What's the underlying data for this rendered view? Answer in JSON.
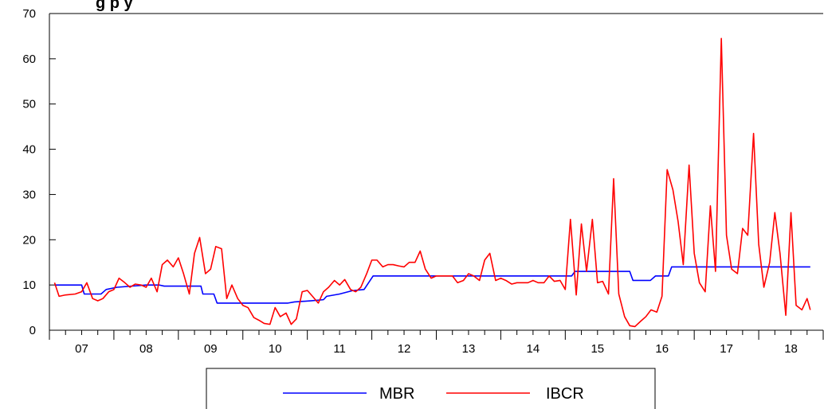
{
  "chart_data": {
    "type": "line",
    "title_fragment": "g              p    y",
    "ylim": [
      0,
      70
    ],
    "yticks": [
      "0",
      "10",
      "20",
      "30",
      "40",
      "50",
      "60",
      "70"
    ],
    "xlim": [
      2006.5,
      2018.5
    ],
    "xtick_labels": [
      "07",
      "08",
      "09",
      "10",
      "11",
      "12",
      "13",
      "14",
      "15",
      "16",
      "17",
      "18"
    ],
    "grid": false,
    "legend_position": "bottom",
    "series": [
      {
        "name": "MBR",
        "color": "#0000ff",
        "points": [
          [
            2006.58,
            10.0
          ],
          [
            2007.0,
            10.0
          ],
          [
            2007.04,
            8.0
          ],
          [
            2007.3,
            8.0
          ],
          [
            2007.38,
            9.0
          ],
          [
            2007.55,
            9.5
          ],
          [
            2008.0,
            10.0
          ],
          [
            2008.2,
            10.0
          ],
          [
            2008.28,
            9.75
          ],
          [
            2008.85,
            9.75
          ],
          [
            2008.88,
            8.0
          ],
          [
            2009.05,
            8.0
          ],
          [
            2009.1,
            6.0
          ],
          [
            2010.2,
            6.0
          ],
          [
            2010.3,
            6.25
          ],
          [
            2010.55,
            6.5
          ],
          [
            2010.75,
            6.75
          ],
          [
            2010.8,
            7.5
          ],
          [
            2011.0,
            8.0
          ],
          [
            2011.2,
            8.75
          ],
          [
            2011.38,
            9.0
          ],
          [
            2011.52,
            12.0
          ],
          [
            2014.6,
            12.0
          ],
          [
            2014.65,
            13.0
          ],
          [
            2015.5,
            13.0
          ],
          [
            2015.55,
            11.0
          ],
          [
            2015.82,
            11.0
          ],
          [
            2015.9,
            12.0
          ],
          [
            2016.1,
            12.0
          ],
          [
            2016.15,
            14.0
          ],
          [
            2018.3,
            14.0
          ]
        ]
      },
      {
        "name": "IBCR",
        "color": "#ff0000",
        "points": [
          [
            2006.58,
            10.5
          ],
          [
            2006.65,
            7.5
          ],
          [
            2006.75,
            7.8
          ],
          [
            2006.9,
            8.0
          ],
          [
            2007.0,
            8.5
          ],
          [
            2007.08,
            10.5
          ],
          [
            2007.17,
            7.0
          ],
          [
            2007.25,
            6.5
          ],
          [
            2007.33,
            7.0
          ],
          [
            2007.42,
            8.5
          ],
          [
            2007.5,
            9.0
          ],
          [
            2007.58,
            11.5
          ],
          [
            2007.67,
            10.5
          ],
          [
            2007.75,
            9.5
          ],
          [
            2007.83,
            10.2
          ],
          [
            2007.92,
            10.0
          ],
          [
            2008.0,
            9.5
          ],
          [
            2008.08,
            11.5
          ],
          [
            2008.17,
            8.5
          ],
          [
            2008.25,
            14.5
          ],
          [
            2008.33,
            15.5
          ],
          [
            2008.42,
            14.0
          ],
          [
            2008.5,
            16.0
          ],
          [
            2008.58,
            12.5
          ],
          [
            2008.67,
            8.0
          ],
          [
            2008.75,
            17.0
          ],
          [
            2008.83,
            20.5
          ],
          [
            2008.92,
            12.5
          ],
          [
            2009.0,
            13.5
          ],
          [
            2009.08,
            18.5
          ],
          [
            2009.17,
            18.0
          ],
          [
            2009.25,
            7.0
          ],
          [
            2009.33,
            10.0
          ],
          [
            2009.42,
            7.0
          ],
          [
            2009.5,
            5.5
          ],
          [
            2009.58,
            5.0
          ],
          [
            2009.67,
            2.8
          ],
          [
            2009.75,
            2.2
          ],
          [
            2009.83,
            1.5
          ],
          [
            2009.92,
            1.3
          ],
          [
            2010.0,
            5.0
          ],
          [
            2010.08,
            3.0
          ],
          [
            2010.17,
            3.8
          ],
          [
            2010.25,
            1.3
          ],
          [
            2010.33,
            2.5
          ],
          [
            2010.42,
            8.5
          ],
          [
            2010.5,
            8.8
          ],
          [
            2010.58,
            7.5
          ],
          [
            2010.67,
            6.0
          ],
          [
            2010.75,
            8.5
          ],
          [
            2010.83,
            9.5
          ],
          [
            2010.92,
            11.0
          ],
          [
            2011.0,
            10.0
          ],
          [
            2011.08,
            11.2
          ],
          [
            2011.17,
            9.0
          ],
          [
            2011.25,
            8.5
          ],
          [
            2011.33,
            9.5
          ],
          [
            2011.42,
            12.5
          ],
          [
            2011.5,
            15.5
          ],
          [
            2011.58,
            15.5
          ],
          [
            2011.67,
            14.0
          ],
          [
            2011.75,
            14.5
          ],
          [
            2011.83,
            14.5
          ],
          [
            2011.92,
            14.2
          ],
          [
            2012.0,
            14.0
          ],
          [
            2012.08,
            15.0
          ],
          [
            2012.17,
            15.0
          ],
          [
            2012.25,
            17.5
          ],
          [
            2012.33,
            13.5
          ],
          [
            2012.42,
            11.5
          ],
          [
            2012.5,
            12.0
          ],
          [
            2012.58,
            12.0
          ],
          [
            2012.67,
            12.0
          ],
          [
            2012.75,
            12.0
          ],
          [
            2012.83,
            10.5
          ],
          [
            2012.92,
            11.0
          ],
          [
            2013.0,
            12.5
          ],
          [
            2013.08,
            12.0
          ],
          [
            2013.17,
            11.0
          ],
          [
            2013.25,
            15.5
          ],
          [
            2013.33,
            17.0
          ],
          [
            2013.42,
            11.0
          ],
          [
            2013.5,
            11.5
          ],
          [
            2013.58,
            11.0
          ],
          [
            2013.67,
            10.2
          ],
          [
            2013.75,
            10.5
          ],
          [
            2013.83,
            10.5
          ],
          [
            2013.92,
            10.5
          ],
          [
            2014.0,
            11.0
          ],
          [
            2014.08,
            10.5
          ],
          [
            2014.17,
            10.5
          ],
          [
            2014.25,
            12.0
          ],
          [
            2014.33,
            10.8
          ],
          [
            2014.42,
            11.0
          ],
          [
            2014.5,
            9.0
          ],
          [
            2014.58,
            24.5
          ],
          [
            2014.67,
            7.8
          ],
          [
            2014.75,
            23.5
          ],
          [
            2014.83,
            13.0
          ],
          [
            2014.92,
            24.5
          ],
          [
            2015.0,
            10.5
          ],
          [
            2015.08,
            10.8
          ],
          [
            2015.17,
            8.0
          ],
          [
            2015.25,
            33.5
          ],
          [
            2015.33,
            8.0
          ],
          [
            2015.42,
            3.0
          ],
          [
            2015.5,
            1.0
          ],
          [
            2015.58,
            0.8
          ],
          [
            2015.67,
            2.0
          ],
          [
            2015.75,
            3.0
          ],
          [
            2015.83,
            4.5
          ],
          [
            2015.92,
            4.0
          ],
          [
            2016.0,
            7.5
          ],
          [
            2016.08,
            35.5
          ],
          [
            2016.17,
            31.0
          ],
          [
            2016.25,
            24.0
          ],
          [
            2016.33,
            14.5
          ],
          [
            2016.42,
            36.5
          ],
          [
            2016.5,
            17.0
          ],
          [
            2016.58,
            10.5
          ],
          [
            2016.67,
            8.5
          ],
          [
            2016.75,
            27.5
          ],
          [
            2016.83,
            13.0
          ],
          [
            2016.92,
            64.5
          ],
          [
            2017.0,
            21.0
          ],
          [
            2017.08,
            13.5
          ],
          [
            2017.17,
            12.5
          ],
          [
            2017.25,
            22.5
          ],
          [
            2017.33,
            21.0
          ],
          [
            2017.42,
            43.5
          ],
          [
            2017.5,
            19.0
          ],
          [
            2017.58,
            9.5
          ],
          [
            2017.67,
            15.0
          ],
          [
            2017.75,
            26.0
          ],
          [
            2017.83,
            17.0
          ],
          [
            2017.92,
            3.3
          ],
          [
            2018.0,
            26.0
          ],
          [
            2018.08,
            5.5
          ],
          [
            2018.17,
            4.5
          ],
          [
            2018.25,
            7.0
          ],
          [
            2018.3,
            4.5
          ]
        ]
      }
    ]
  },
  "legend": {
    "mbr_label": "MBR",
    "ibcr_label": "IBCR"
  }
}
